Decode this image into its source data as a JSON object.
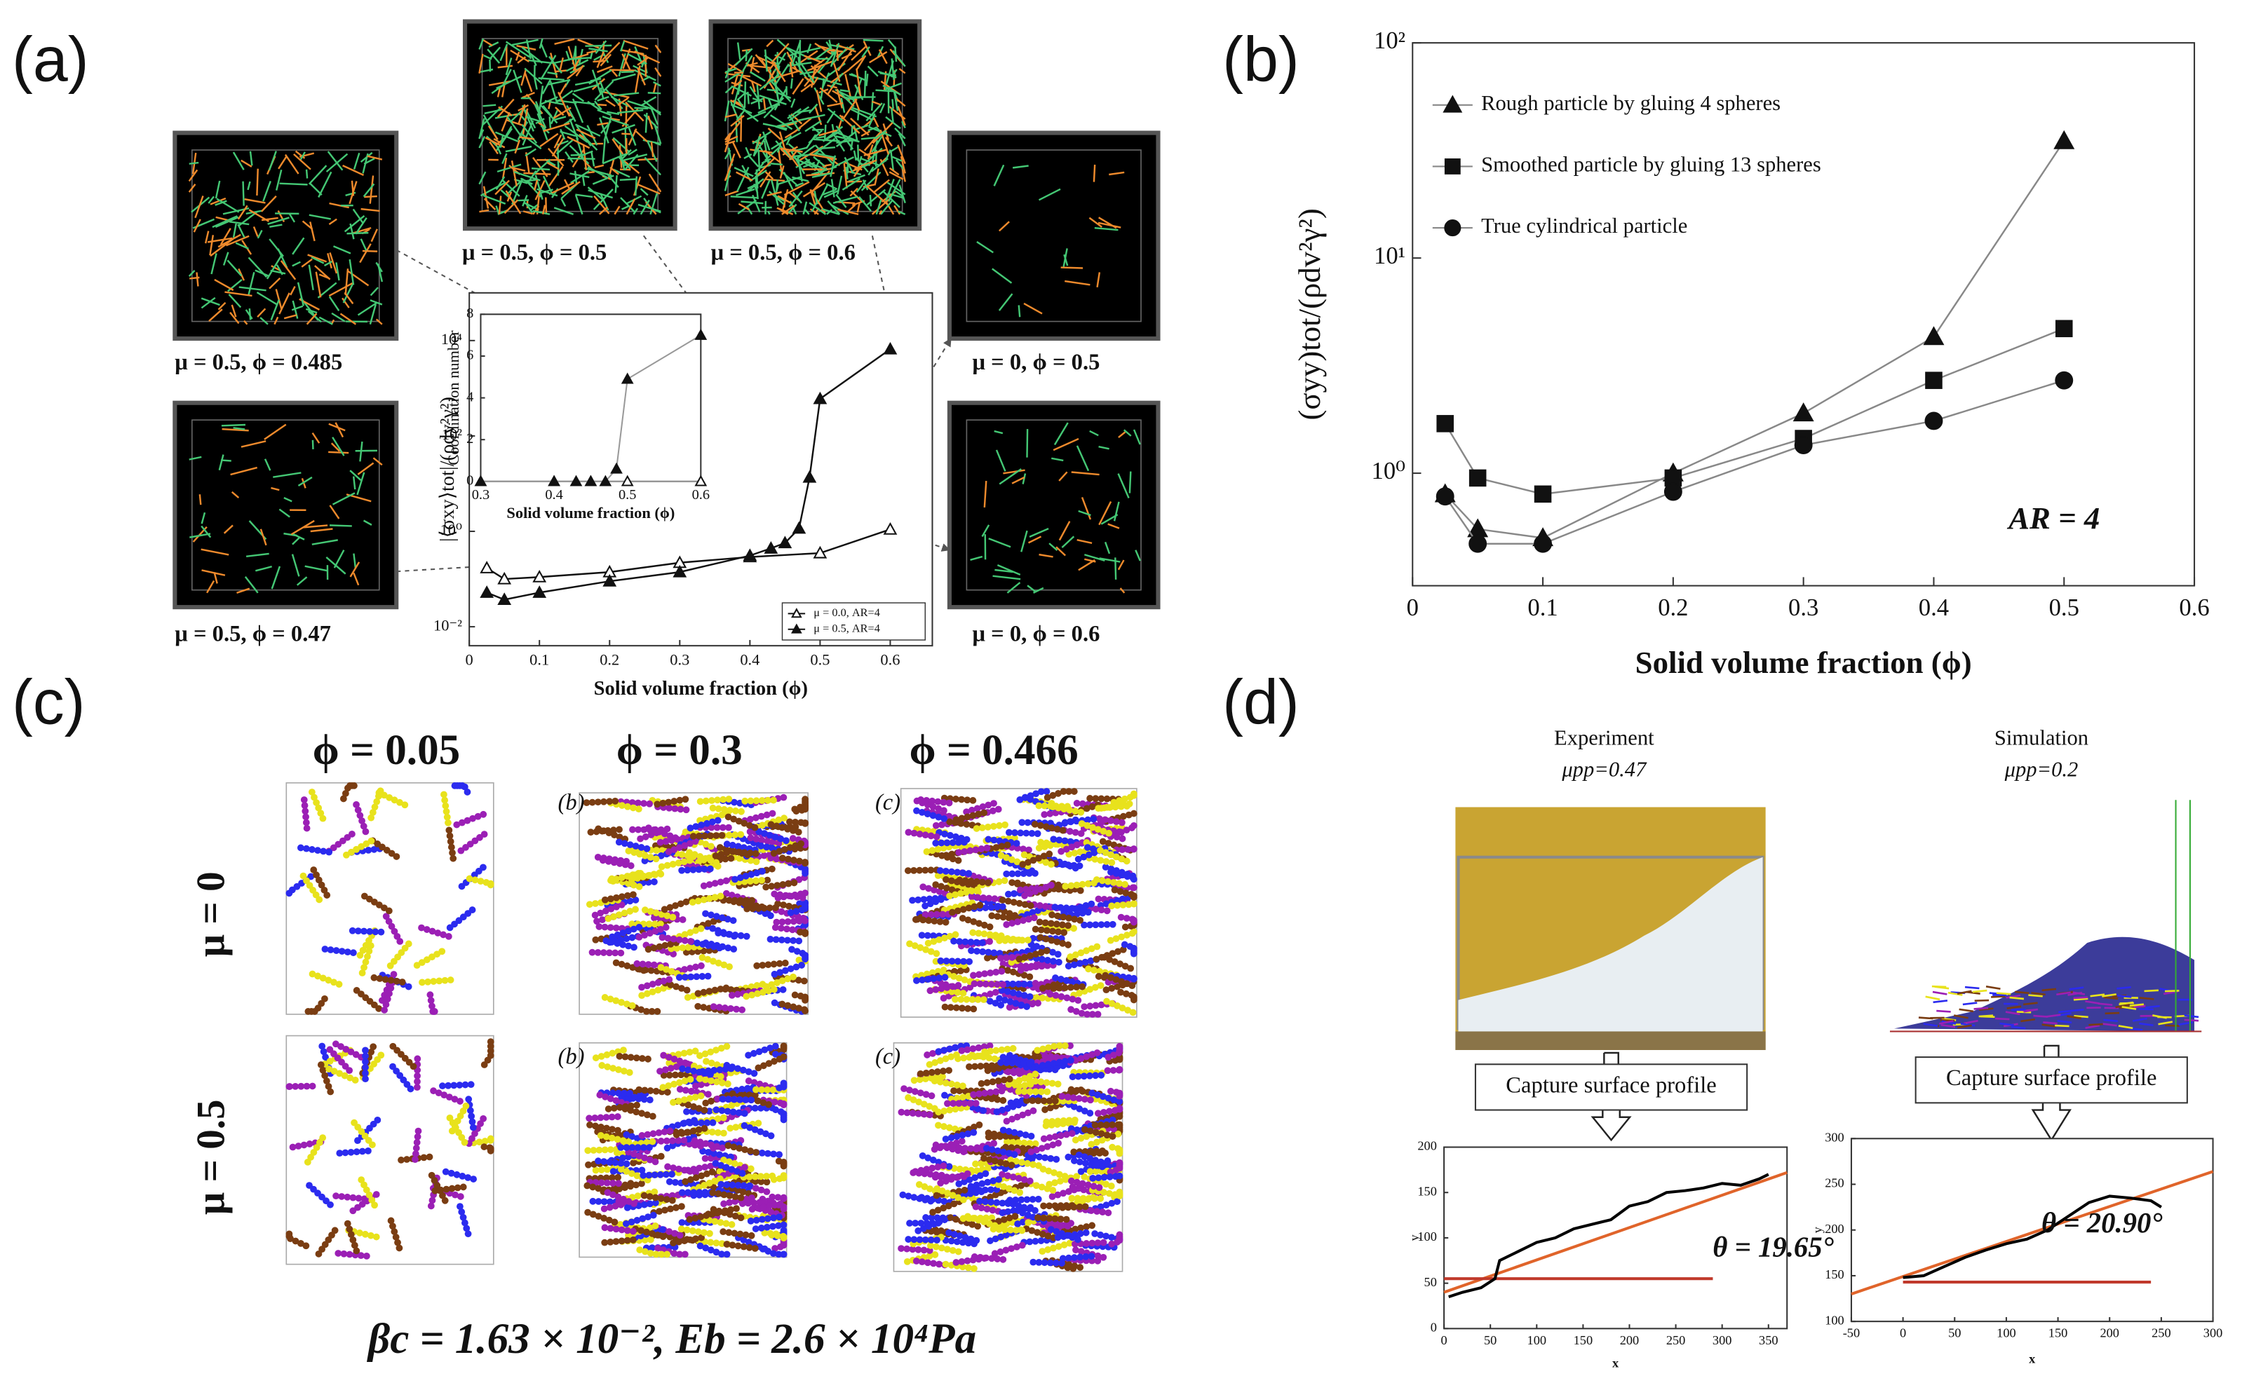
{
  "labels": [
    "(a)",
    "(b)",
    "(c)",
    "(d)"
  ],
  "panel_a": {
    "captions": [
      "μ = 0.5, ϕ = 0.485",
      "μ = 0.5, ϕ = 0.5",
      "μ = 0.5, ϕ = 0.6",
      "μ = 0, ϕ = 0.5",
      "μ = 0.5, ϕ = 0.47",
      "μ = 0, ϕ = 0.6"
    ]
  },
  "panel_c": {
    "columns": [
      "ϕ = 0.05",
      "ϕ = 0.3",
      "ϕ = 0.466"
    ],
    "rows": [
      "μ = 0",
      "μ = 0.5"
    ],
    "sublabels": [
      "(b)",
      "(c)"
    ],
    "caption": "βc = 1.63 × 10⁻², Eb = 2.6 × 10⁴Pa"
  },
  "panel_d": {
    "experiment": "Experiment",
    "experiment_mu": "μpp=0.47",
    "simulation": "Simulation",
    "simulation_mu": "μpp=0.2",
    "step": "Capture surface profile"
  },
  "chart_data": [
    {
      "type": "line",
      "xlabel": "Solid volume fraction (ϕ)",
      "ylabel": "|⟨σxy⟩tot|/(ρdv²γ²)",
      "ylog": true,
      "xlim": [
        0,
        0.66
      ],
      "xticks": [
        0,
        0.1,
        0.2,
        0.3,
        0.4,
        0.5,
        0.6
      ],
      "ylim": [
        0.004,
        100000
      ],
      "yticks": [
        {
          "value": 0.01,
          "label": "10⁻²"
        },
        {
          "value": 1,
          "label": "10⁰"
        },
        {
          "value": 100,
          "label": "10²"
        },
        {
          "value": 10000,
          "label": "10⁴"
        }
      ],
      "legend": "lower right",
      "series": [
        {
          "name": "μ = 0.0, AR=4",
          "color": "#111",
          "marker": "triangle",
          "marker_fill": "#fff",
          "x": [
            0.025,
            0.05,
            0.1,
            0.2,
            0.3,
            0.4,
            0.5,
            0.6
          ],
          "values": [
            0.17,
            0.1,
            0.11,
            0.14,
            0.22,
            0.29,
            0.35,
            1.1
          ]
        },
        {
          "name": "μ = 0.5, AR=4",
          "color": "#111",
          "marker": "triangle",
          "marker_fill": "#111",
          "x": [
            0.025,
            0.05,
            0.1,
            0.2,
            0.3,
            0.4,
            0.43,
            0.45,
            0.47,
            0.485,
            0.5,
            0.6
          ],
          "values": [
            0.052,
            0.037,
            0.052,
            0.09,
            0.14,
            0.31,
            0.44,
            0.57,
            1.15,
            13.5,
            600,
            6600
          ]
        }
      ]
    },
    {
      "type": "line",
      "xlabel": "Solid volume fraction (ϕ)",
      "ylabel": "Coordination number",
      "xlim": [
        0.3,
        0.6
      ],
      "xticks": [
        0.3,
        0.4,
        0.5,
        0.6
      ],
      "ylim": [
        0,
        8
      ],
      "yticks": [
        0,
        2,
        4,
        6,
        8
      ],
      "series": [
        {
          "color": "#111",
          "line_color": "#999",
          "marker": "triangle",
          "marker_fill": "#fff",
          "x": [
            0.3,
            0.4,
            0.45,
            0.5,
            0.6
          ],
          "values": [
            0,
            0,
            0,
            0,
            0
          ]
        },
        {
          "color": "#111",
          "line_color": "#999",
          "marker": "triangle",
          "marker_fill": "#111",
          "x": [
            0.3,
            0.4,
            0.43,
            0.45,
            0.47,
            0.485,
            0.5,
            0.6
          ],
          "values": [
            0,
            0,
            0,
            0,
            0,
            0.6,
            4.9,
            7
          ]
        }
      ]
    },
    {
      "type": "line",
      "xlabel": "Solid volume fraction (ϕ)",
      "ylabel": "(σyy)tot/(ρdv²γ²)",
      "ylog": true,
      "annotation": "AR = 4",
      "xlim": [
        0,
        0.6
      ],
      "xticks": [
        0,
        0.1,
        0.2,
        0.3,
        0.4,
        0.5,
        0.6
      ],
      "ylim": [
        0.3,
        100
      ],
      "yticks": [
        {
          "value": 1,
          "label": "10⁰"
        },
        {
          "value": 10,
          "label": "10¹"
        },
        {
          "value": 100,
          "label": "10²"
        }
      ],
      "legend": "upper left",
      "x": [
        0.025,
        0.05,
        0.1,
        0.2,
        0.3,
        0.4,
        0.5
      ],
      "series": [
        {
          "name": "Rough particle by gluing 4 spheres",
          "color": "#111",
          "line_color": "#888",
          "marker": "triangle",
          "marker_fill": "#111",
          "values": [
            0.8,
            0.55,
            0.5,
            1.0,
            1.9,
            4.3,
            35
          ]
        },
        {
          "name": "Smoothed particle by gluing 13 spheres",
          "color": "#111",
          "line_color": "#888",
          "marker": "square",
          "marker_fill": "#111",
          "values": [
            1.7,
            0.95,
            0.8,
            0.95,
            1.45,
            2.7,
            4.7
          ]
        },
        {
          "name": "True cylindrical particle",
          "color": "#111",
          "line_color": "#888",
          "marker": "circle",
          "marker_fill": "#111",
          "values": [
            0.78,
            0.47,
            0.47,
            0.82,
            1.35,
            1.75,
            2.7
          ]
        }
      ]
    },
    {
      "type": "line",
      "xlabel": "x",
      "ylabel": "y",
      "annotation": "θ = 19.65°",
      "xlim": [
        0,
        370
      ],
      "xticks": [
        0,
        50,
        100,
        150,
        200,
        250,
        300,
        350
      ],
      "ylim": [
        0,
        200
      ],
      "yticks": [
        0,
        50,
        100,
        150,
        200
      ],
      "series": [
        {
          "color": "#e0642a",
          "x": [
            0,
            370
          ],
          "values": [
            40,
            172
          ]
        },
        {
          "color": "#c0392b",
          "x": [
            0,
            290
          ],
          "values": [
            55,
            55
          ]
        },
        {
          "color": "#000",
          "x": [
            5,
            20,
            40,
            55,
            60,
            80,
            100,
            120,
            140,
            160,
            180,
            200,
            220,
            240,
            260,
            280,
            300,
            320,
            340,
            350
          ],
          "values": [
            35,
            40,
            45,
            55,
            75,
            85,
            95,
            100,
            110,
            115,
            120,
            135,
            140,
            150,
            152,
            155,
            160,
            158,
            165,
            170
          ]
        }
      ]
    },
    {
      "type": "line",
      "xlabel": "x",
      "ylabel": "y",
      "annotation": "θ = 20.90°",
      "xlim": [
        -50,
        300
      ],
      "xticks": [
        -50,
        0,
        50,
        100,
        150,
        200,
        250,
        300
      ],
      "ylim": [
        100,
        300
      ],
      "yticks": [
        100,
        150,
        200,
        250,
        300
      ],
      "series": [
        {
          "color": "#e0642a",
          "x": [
            -50,
            300
          ],
          "values": [
            130,
            264
          ]
        },
        {
          "color": "#c0392b",
          "x": [
            0,
            240
          ],
          "values": [
            143,
            143
          ]
        },
        {
          "color": "#000",
          "x": [
            0,
            20,
            40,
            60,
            80,
            100,
            120,
            140,
            160,
            180,
            200,
            220,
            240,
            250
          ],
          "values": [
            148,
            150,
            160,
            170,
            178,
            185,
            190,
            200,
            215,
            230,
            237,
            235,
            232,
            225
          ]
        }
      ]
    }
  ]
}
